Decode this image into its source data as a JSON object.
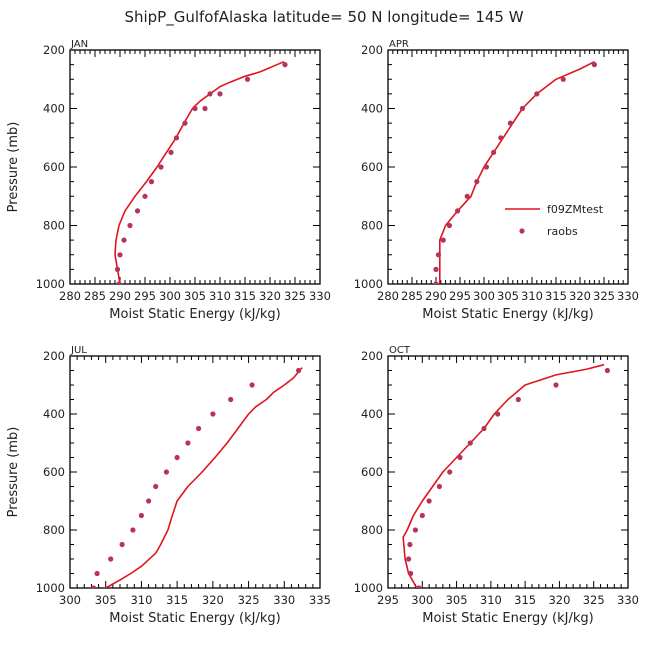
{
  "figure": {
    "title": "ShipP_GulfofAlaska  latitude= 50 N longitude= 145 W"
  },
  "legend": {
    "placement": "inside APR panel, lower-right",
    "entries": [
      {
        "label": "f09ZMtest",
        "kind": "line",
        "color": "#e0141e"
      },
      {
        "label": "raobs",
        "kind": "marker",
        "color": "#b8325a"
      }
    ]
  },
  "colors": {
    "model": "#e0141e",
    "obs": "#b8325a"
  },
  "chart_data": [
    {
      "panel": "JAN",
      "type": "line",
      "xlabel": "Moist Static Energy (kJ/kg)",
      "ylabel": "Pressure (mb)",
      "xlim": [
        280,
        330
      ],
      "xticks": [
        280,
        285,
        290,
        295,
        300,
        305,
        310,
        315,
        320,
        325,
        330
      ],
      "ylim": [
        1000,
        200
      ],
      "yticks": [
        200,
        400,
        600,
        800,
        1000
      ],
      "series": [
        {
          "name": "f09ZMtest",
          "kind": "line",
          "points": [
            [
              290.0,
              1000
            ],
            [
              289.5,
              950
            ],
            [
              289.0,
              900
            ],
            [
              289.2,
              850
            ],
            [
              289.8,
              800
            ],
            [
              291.0,
              750
            ],
            [
              293.0,
              700
            ],
            [
              295.3,
              650
            ],
            [
              297.4,
              600
            ],
            [
              299.3,
              550
            ],
            [
              301.2,
              500
            ],
            [
              302.8,
              450
            ],
            [
              304.5,
              400
            ],
            [
              306.0,
              375
            ],
            [
              308.0,
              350
            ],
            [
              310.0,
              325
            ],
            [
              312.0,
              310
            ],
            [
              315.0,
              290
            ],
            [
              318.0,
              275
            ],
            [
              322.8,
              240
            ]
          ]
        },
        {
          "name": "raobs",
          "kind": "marker",
          "points": [
            [
              289.8,
              1000
            ],
            [
              289.5,
              950
            ],
            [
              290.0,
              900
            ],
            [
              290.8,
              850
            ],
            [
              292.0,
              800
            ],
            [
              293.5,
              750
            ],
            [
              295.0,
              700
            ],
            [
              296.3,
              650
            ],
            [
              298.2,
              600
            ],
            [
              300.2,
              550
            ],
            [
              301.3,
              500
            ],
            [
              303.0,
              450
            ],
            [
              305.0,
              400
            ],
            [
              307.0,
              400
            ],
            [
              308.0,
              350
            ],
            [
              310.0,
              350
            ],
            [
              315.5,
              300
            ],
            [
              323.0,
              250
            ]
          ]
        }
      ]
    },
    {
      "panel": "APR",
      "type": "line",
      "xlabel": "Moist Static Energy (kJ/kg)",
      "ylabel": "",
      "xlim": [
        280,
        330
      ],
      "xticks": [
        280,
        285,
        290,
        295,
        300,
        305,
        310,
        315,
        320,
        325,
        330
      ],
      "ylim": [
        1000,
        200
      ],
      "yticks": [
        200,
        400,
        600,
        800,
        1000
      ],
      "series": [
        {
          "name": "f09ZMtest",
          "kind": "line",
          "points": [
            [
              290.8,
              1000
            ],
            [
              290.8,
              950
            ],
            [
              290.8,
              900
            ],
            [
              290.8,
              850
            ],
            [
              292.0,
              800
            ],
            [
              294.5,
              750
            ],
            [
              297.3,
              700
            ],
            [
              298.5,
              650
            ],
            [
              300.0,
              600
            ],
            [
              302.0,
              550
            ],
            [
              304.0,
              500
            ],
            [
              306.0,
              450
            ],
            [
              308.0,
              400
            ],
            [
              311.0,
              350
            ],
            [
              315.0,
              300
            ],
            [
              320.0,
              265
            ],
            [
              323.0,
              240
            ]
          ]
        },
        {
          "name": "raobs",
          "kind": "marker",
          "points": [
            [
              290.0,
              1000
            ],
            [
              290.0,
              950
            ],
            [
              290.5,
              900
            ],
            [
              291.5,
              850
            ],
            [
              292.8,
              800
            ],
            [
              294.5,
              750
            ],
            [
              296.5,
              700
            ],
            [
              298.5,
              650
            ],
            [
              300.5,
              600
            ],
            [
              302.0,
              550
            ],
            [
              303.5,
              500
            ],
            [
              305.5,
              450
            ],
            [
              308.0,
              400
            ],
            [
              311.0,
              350
            ],
            [
              316.5,
              300
            ],
            [
              323.0,
              250
            ]
          ]
        }
      ]
    },
    {
      "panel": "JUL",
      "type": "line",
      "xlabel": "Moist Static Energy (kJ/kg)",
      "ylabel": "Pressure (mb)",
      "xlim": [
        300,
        335
      ],
      "xticks": [
        300,
        305,
        310,
        315,
        320,
        325,
        330,
        335
      ],
      "ylim": [
        1000,
        200
      ],
      "yticks": [
        200,
        400,
        600,
        800,
        1000
      ],
      "series": [
        {
          "name": "f09ZMtest",
          "kind": "line",
          "points": [
            [
              304.3,
              1010
            ],
            [
              305.0,
              1000
            ],
            [
              306.8,
              975
            ],
            [
              308.5,
              950
            ],
            [
              310.0,
              925
            ],
            [
              312.0,
              880
            ],
            [
              312.7,
              850
            ],
            [
              313.7,
              800
            ],
            [
              314.2,
              760
            ],
            [
              315.0,
              700
            ],
            [
              316.5,
              650
            ],
            [
              318.5,
              600
            ],
            [
              320.3,
              550
            ],
            [
              322.0,
              500
            ],
            [
              323.5,
              450
            ],
            [
              325.0,
              400
            ],
            [
              326.0,
              375
            ],
            [
              327.5,
              350
            ],
            [
              328.5,
              325
            ],
            [
              330.0,
              300
            ],
            [
              331.3,
              275
            ],
            [
              332.5,
              240
            ]
          ]
        },
        {
          "name": "raobs",
          "kind": "marker",
          "points": [
            [
              303.3,
              1000
            ],
            [
              303.8,
              950
            ],
            [
              305.7,
              900
            ],
            [
              307.3,
              850
            ],
            [
              308.8,
              800
            ],
            [
              310.0,
              750
            ],
            [
              311.0,
              700
            ],
            [
              312.0,
              650
            ],
            [
              313.5,
              600
            ],
            [
              315.0,
              550
            ],
            [
              316.5,
              500
            ],
            [
              318.0,
              450
            ],
            [
              320.0,
              400
            ],
            [
              322.5,
              350
            ],
            [
              325.5,
              300
            ],
            [
              332.0,
              250
            ]
          ]
        }
      ]
    },
    {
      "panel": "OCT",
      "type": "line",
      "xlabel": "Moist Static Energy (kJ/kg)",
      "ylabel": "",
      "xlim": [
        295,
        330
      ],
      "xticks": [
        295,
        300,
        305,
        310,
        315,
        320,
        325,
        330
      ],
      "ylim": [
        1000,
        200
      ],
      "yticks": [
        200,
        400,
        600,
        800,
        1000
      ],
      "series": [
        {
          "name": "f09ZMtest",
          "kind": "line",
          "points": [
            [
              299.2,
              1000
            ],
            [
              298.0,
              950
            ],
            [
              297.5,
              900
            ],
            [
              297.3,
              850
            ],
            [
              297.2,
              825
            ],
            [
              297.8,
              800
            ],
            [
              298.7,
              750
            ],
            [
              300.0,
              700
            ],
            [
              301.5,
              650
            ],
            [
              303.0,
              600
            ],
            [
              305.0,
              550
            ],
            [
              307.0,
              500
            ],
            [
              309.0,
              450
            ],
            [
              310.5,
              400
            ],
            [
              312.5,
              350
            ],
            [
              315.0,
              300
            ],
            [
              319.5,
              265
            ],
            [
              324.0,
              245
            ],
            [
              326.5,
              230
            ]
          ]
        },
        {
          "name": "raobs",
          "kind": "marker",
          "points": [
            [
              299.5,
              1000
            ],
            [
              298.3,
              950
            ],
            [
              298.0,
              900
            ],
            [
              298.2,
              850
            ],
            [
              299.0,
              800
            ],
            [
              300.0,
              750
            ],
            [
              301.0,
              700
            ],
            [
              302.5,
              650
            ],
            [
              304.0,
              600
            ],
            [
              305.5,
              550
            ],
            [
              307.0,
              500
            ],
            [
              309.0,
              450
            ],
            [
              311.0,
              400
            ],
            [
              314.0,
              350
            ],
            [
              319.5,
              300
            ],
            [
              327.0,
              250
            ]
          ]
        }
      ]
    }
  ]
}
